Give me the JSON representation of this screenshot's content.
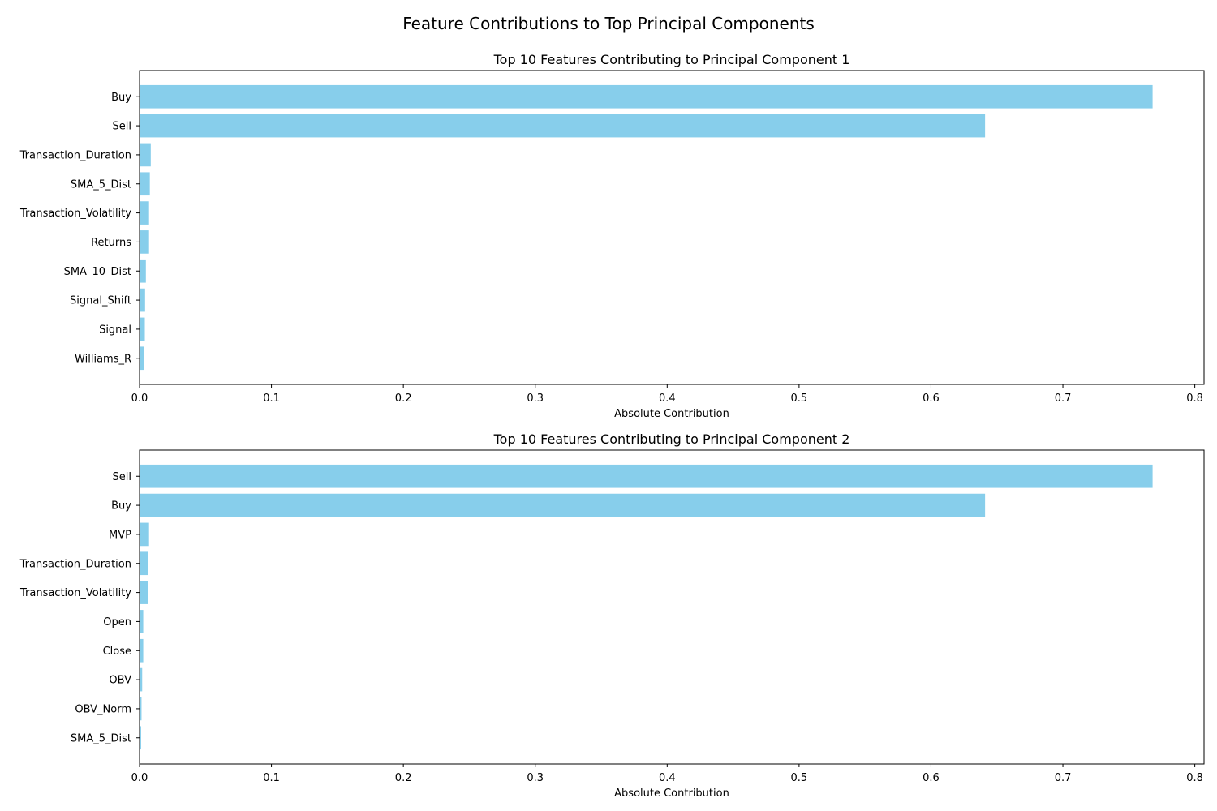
{
  "suptitle": "Feature Contributions to Top Principal Components",
  "bar_color": "#87ceeb",
  "chart_data": [
    {
      "type": "bar",
      "orientation": "horizontal",
      "title": "Top 10 Features Contributing to Principal Component 1",
      "xlabel": "Absolute Contribution",
      "ylabel": "",
      "xlim": [
        0,
        0.807
      ],
      "xticks": [
        0.0,
        0.1,
        0.2,
        0.3,
        0.4,
        0.5,
        0.6,
        0.7,
        0.8
      ],
      "xtick_labels": [
        "0.0",
        "0.1",
        "0.2",
        "0.3",
        "0.4",
        "0.5",
        "0.6",
        "0.7",
        "0.8"
      ],
      "categories": [
        "Buy",
        "Sell",
        "Transaction_Duration",
        "SMA_5_Dist",
        "Transaction_Volatility",
        "Returns",
        "SMA_10_Dist",
        "Signal_Shift",
        "Signal",
        "Williams_R"
      ],
      "values": [
        0.768,
        0.641,
        0.0085,
        0.0078,
        0.0072,
        0.0072,
        0.0048,
        0.0042,
        0.004,
        0.0035
      ],
      "grid": false
    },
    {
      "type": "bar",
      "orientation": "horizontal",
      "title": "Top 10 Features Contributing to Principal Component 2",
      "xlabel": "Absolute Contribution",
      "ylabel": "",
      "xlim": [
        0,
        0.807
      ],
      "xticks": [
        0.0,
        0.1,
        0.2,
        0.3,
        0.4,
        0.5,
        0.6,
        0.7,
        0.8
      ],
      "xtick_labels": [
        "0.0",
        "0.1",
        "0.2",
        "0.3",
        "0.4",
        "0.5",
        "0.6",
        "0.7",
        "0.8"
      ],
      "categories": [
        "Sell",
        "Buy",
        "MVP",
        "Transaction_Duration",
        "Transaction_Volatility",
        "Open",
        "Close",
        "OBV",
        "OBV_Norm",
        "SMA_5_Dist"
      ],
      "values": [
        0.768,
        0.641,
        0.0072,
        0.0066,
        0.0065,
        0.0028,
        0.0028,
        0.002,
        0.0015,
        0.0012
      ],
      "grid": false
    }
  ]
}
